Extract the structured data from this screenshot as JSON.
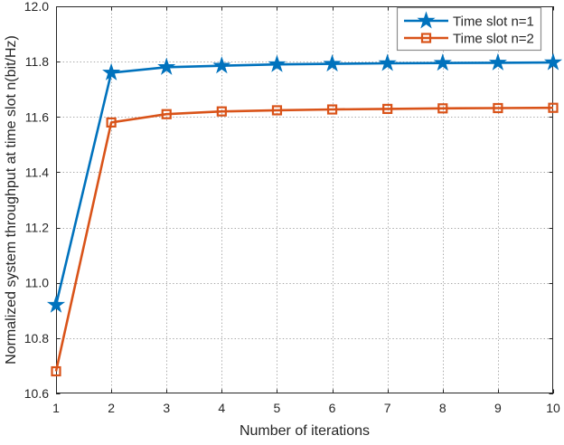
{
  "colors": {
    "background": "#ffffff",
    "axis": "#262626",
    "grid": "#a8a8a8",
    "text": "#262626",
    "legend_border": "#8c8c8c",
    "series1": "#0072BD",
    "series2": "#D95319"
  },
  "chart_data": {
    "type": "line",
    "title": "",
    "xlabel": "Number of iterations",
    "ylabel": "Normalized system throughput at time slot n(bit/Hz)",
    "x": [
      1,
      2,
      3,
      4,
      5,
      6,
      7,
      8,
      9,
      10
    ],
    "series": [
      {
        "name": "Time slot n=1",
        "color": "#0072BD",
        "marker": "star",
        "values": [
          10.92,
          11.76,
          11.78,
          11.785,
          11.79,
          11.792,
          11.794,
          11.795,
          11.796,
          11.797
        ]
      },
      {
        "name": "Time slot n=2",
        "color": "#D95319",
        "marker": "square",
        "values": [
          10.68,
          11.58,
          11.61,
          11.62,
          11.624,
          11.627,
          11.629,
          11.631,
          11.632,
          11.633
        ]
      }
    ],
    "xlim": [
      1,
      10
    ],
    "ylim": [
      10.6,
      12.0
    ],
    "xticks": [
      1,
      2,
      3,
      4,
      5,
      6,
      7,
      8,
      9,
      10
    ],
    "xticklabels": [
      "1",
      "2",
      "3",
      "4",
      "5",
      "6",
      "7",
      "8",
      "9",
      "10"
    ],
    "yticks": [
      10.6,
      10.8,
      11.0,
      11.2,
      11.4,
      11.6,
      11.8,
      12.0
    ],
    "yticklabels": [
      "10.6",
      "10.8",
      "11.0",
      "11.2",
      "11.4",
      "11.6",
      "11.8",
      "12.0"
    ],
    "grid": true,
    "grid_style": "dotted",
    "legend": {
      "position": "top-right",
      "entries": [
        "Time slot n=1",
        "Time slot n=2"
      ]
    }
  }
}
